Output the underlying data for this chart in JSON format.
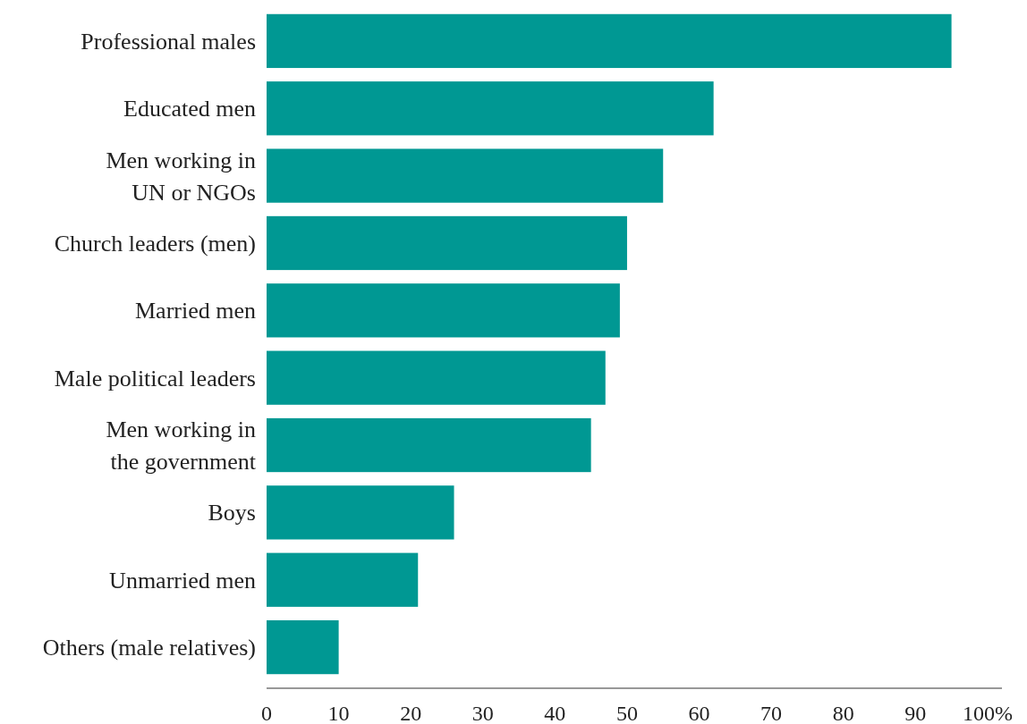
{
  "chart_data": {
    "type": "bar",
    "orientation": "horizontal",
    "categories": [
      "Professional males",
      "Educated men",
      "Men working in\nUN or NGOs",
      "Church leaders (men)",
      "Married men",
      "Male political leaders",
      "Men working in\nthe government",
      "Boys",
      "Unmarried men",
      "Others (male relatives)"
    ],
    "values": [
      95,
      62,
      55,
      50,
      49,
      47,
      45,
      26,
      21,
      10
    ],
    "color": "#009893",
    "xlim": [
      0,
      102
    ],
    "xticks": [
      0,
      10,
      20,
      30,
      40,
      50,
      60,
      70,
      80,
      90,
      {
        "value": 100,
        "label": "100%"
      }
    ],
    "grid": false
  }
}
